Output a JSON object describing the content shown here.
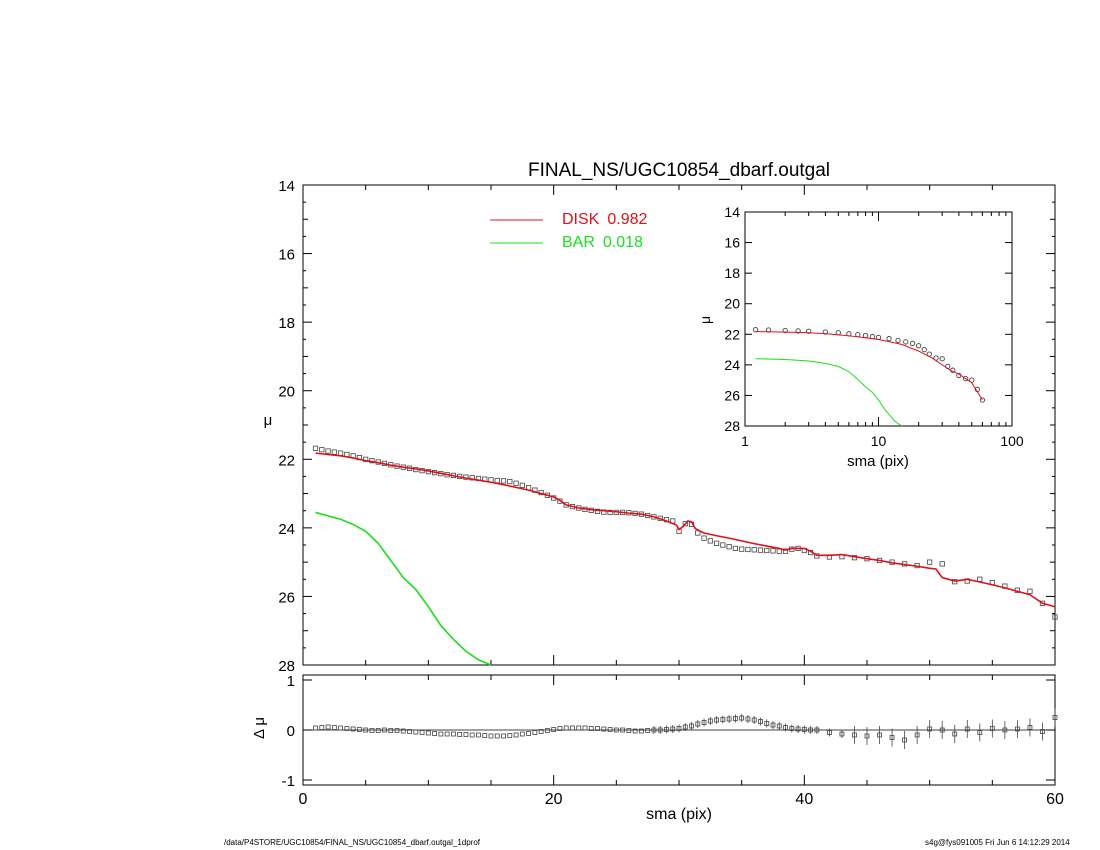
{
  "chart_data": [
    {
      "type": "line",
      "title": "FINAL_NS/UGC10854_dbarf.outgal",
      "ylabel": "μ",
      "xlim": [
        0,
        60
      ],
      "ylim": [
        28,
        14
      ],
      "y_reversed": true,
      "yticks": [
        14,
        16,
        18,
        20,
        22,
        24,
        26,
        28
      ],
      "legend": {
        "placement": "top-center",
        "entries": [
          {
            "name": "DISK",
            "value": "0.982",
            "color": "#e0101a"
          },
          {
            "name": "BAR",
            "value": "0.018",
            "color": "#18e018"
          }
        ]
      },
      "series": [
        {
          "name": "data",
          "marker": "open-square",
          "color": "#333333",
          "x": [
            1.0,
            1.5,
            2.0,
            2.5,
            3.0,
            3.5,
            4.0,
            4.5,
            5.0,
            5.5,
            6.0,
            6.5,
            7.0,
            7.5,
            8.0,
            8.5,
            9.0,
            9.5,
            10.0,
            10.5,
            11.0,
            11.5,
            12.0,
            12.5,
            13.0,
            13.5,
            14.0,
            14.5,
            15.0,
            15.5,
            16.0,
            16.5,
            17.0,
            17.5,
            18.0,
            18.5,
            19.0,
            19.5,
            20.0,
            20.5,
            21.0,
            21.5,
            22.0,
            22.5,
            23.0,
            23.5,
            24.0,
            24.5,
            25.0,
            25.5,
            26.0,
            26.5,
            27.0,
            27.5,
            28.0,
            28.5,
            29.0,
            29.5,
            30.0,
            30.5,
            31.0,
            31.5,
            32.0,
            32.5,
            33.0,
            33.5,
            34.0,
            34.5,
            35.0,
            35.5,
            36.0,
            36.5,
            37.0,
            37.5,
            38.0,
            38.5,
            39.0,
            39.5,
            40.0,
            40.5,
            41.0,
            42.0,
            43.0,
            44.0,
            45.0,
            46.0,
            47.0,
            48.0,
            49.0,
            50.0,
            51.0,
            52.0,
            53.0,
            54.0,
            55.0,
            56.0,
            57.0,
            58.0,
            59.0,
            60.0
          ],
          "y": [
            21.68,
            21.72,
            21.76,
            21.79,
            21.82,
            21.86,
            21.9,
            21.95,
            22.0,
            22.04,
            22.08,
            22.12,
            22.16,
            22.2,
            22.23,
            22.26,
            22.3,
            22.33,
            22.36,
            22.39,
            22.42,
            22.45,
            22.47,
            22.5,
            22.52,
            22.54,
            22.56,
            22.58,
            22.6,
            22.62,
            22.63,
            22.65,
            22.7,
            22.76,
            22.83,
            22.9,
            22.97,
            23.05,
            23.13,
            23.22,
            23.33,
            23.38,
            23.42,
            23.46,
            23.49,
            23.52,
            23.54,
            23.55,
            23.55,
            23.55,
            23.56,
            23.58,
            23.6,
            23.64,
            23.68,
            23.72,
            23.76,
            23.8,
            24.1,
            23.88,
            23.9,
            24.15,
            24.3,
            24.38,
            24.45,
            24.5,
            24.55,
            24.6,
            24.62,
            24.63,
            24.64,
            24.65,
            24.66,
            24.67,
            24.68,
            24.68,
            24.62,
            24.6,
            24.66,
            24.72,
            24.82,
            24.85,
            24.84,
            24.87,
            24.9,
            24.95,
            25.0,
            25.05,
            25.1,
            25.0,
            25.05,
            25.57,
            25.55,
            25.5,
            25.6,
            25.7,
            25.82,
            25.85,
            26.2,
            26.6
          ]
        },
        {
          "name": "DISK",
          "color": "#e0101a",
          "x": [
            1.0,
            2.0,
            3.0,
            4.0,
            5.0,
            6.0,
            7.0,
            8.0,
            9.0,
            10.0,
            11.0,
            12.0,
            13.0,
            14.0,
            15.0,
            16.0,
            17.0,
            18.0,
            19.0,
            20.0,
            20.5,
            21.0,
            22.0,
            23.0,
            24.0,
            25.0,
            26.0,
            27.0,
            28.0,
            29.0,
            29.8,
            30.0,
            30.3,
            30.7,
            31.0,
            31.3,
            31.6,
            32.0,
            33.0,
            34.0,
            35.0,
            36.0,
            37.0,
            38.0,
            38.5,
            39.0,
            39.5,
            40.0,
            40.5,
            41.0,
            42.0,
            43.0,
            44.0,
            45.0,
            46.0,
            47.0,
            48.0,
            49.0,
            50.0,
            50.5,
            51.0,
            52.0,
            53.0,
            54.0,
            55.0,
            56.0,
            57.0,
            58.0,
            59.0,
            60.0
          ],
          "y": [
            21.82,
            21.86,
            21.9,
            21.96,
            22.04,
            22.1,
            22.17,
            22.23,
            22.28,
            22.34,
            22.41,
            22.48,
            22.55,
            22.61,
            22.67,
            22.74,
            22.82,
            22.9,
            23.0,
            23.1,
            23.2,
            23.33,
            23.42,
            23.47,
            23.5,
            23.53,
            23.57,
            23.6,
            23.68,
            23.8,
            23.92,
            24.05,
            23.97,
            23.8,
            23.82,
            24.02,
            24.08,
            24.15,
            24.23,
            24.3,
            24.38,
            24.46,
            24.53,
            24.6,
            24.65,
            24.6,
            24.6,
            24.6,
            24.68,
            24.8,
            24.8,
            24.78,
            24.84,
            24.9,
            24.95,
            25.02,
            25.07,
            25.12,
            25.18,
            25.2,
            25.45,
            25.55,
            25.5,
            25.58,
            25.66,
            25.75,
            25.85,
            25.95,
            26.2,
            26.3
          ]
        },
        {
          "name": "BAR",
          "color": "#18e018",
          "x": [
            1.0,
            2.0,
            3.0,
            4.0,
            5.0,
            6.0,
            6.5,
            7.0,
            8.0,
            9.0,
            10.0,
            11.0,
            12.0,
            13.0,
            14.0,
            15.0,
            15.5
          ],
          "y": [
            23.55,
            23.65,
            23.75,
            23.9,
            24.1,
            24.45,
            24.7,
            24.95,
            25.45,
            25.8,
            26.3,
            26.85,
            27.25,
            27.6,
            27.85,
            28.0,
            28.05
          ]
        }
      ]
    },
    {
      "type": "line",
      "xlabel": "sma (pix)",
      "ylabel": "Δ μ",
      "xlim": [
        0,
        60
      ],
      "ylim": [
        -1.1,
        1.1
      ],
      "xticks": [
        0,
        20,
        40,
        60
      ],
      "yticks": [
        -1,
        0,
        1
      ],
      "reference_line": 0,
      "series": [
        {
          "name": "residual",
          "marker": "open-square-with-errorbar",
          "color": "#333333",
          "x": [
            1.0,
            1.5,
            2.0,
            2.5,
            3.0,
            3.5,
            4.0,
            4.5,
            5.0,
            5.5,
            6.0,
            6.5,
            7.0,
            7.5,
            8.0,
            8.5,
            9.0,
            9.5,
            10.0,
            10.5,
            11.0,
            11.5,
            12.0,
            12.5,
            13.0,
            13.5,
            14.0,
            14.5,
            15.0,
            15.5,
            16.0,
            16.5,
            17.0,
            17.5,
            18.0,
            18.5,
            19.0,
            19.5,
            20.0,
            20.5,
            21.0,
            21.5,
            22.0,
            22.5,
            23.0,
            23.5,
            24.0,
            24.5,
            25.0,
            25.5,
            26.0,
            26.5,
            27.0,
            27.5,
            28.0,
            28.5,
            29.0,
            29.5,
            30.0,
            30.5,
            31.0,
            31.5,
            32.0,
            32.5,
            33.0,
            33.5,
            34.0,
            34.5,
            35.0,
            35.5,
            36.0,
            36.5,
            37.0,
            37.5,
            38.0,
            38.5,
            39.0,
            39.5,
            40.0,
            40.5,
            41.0,
            42.0,
            43.0,
            44.0,
            45.0,
            46.0,
            47.0,
            48.0,
            49.0,
            50.0,
            51.0,
            52.0,
            53.0,
            54.0,
            55.0,
            56.0,
            57.0,
            58.0,
            59.0,
            60.0
          ],
          "y": [
            0.04,
            0.05,
            0.06,
            0.05,
            0.04,
            0.03,
            0.02,
            0.01,
            0.0,
            -0.01,
            -0.01,
            0.0,
            -0.01,
            -0.01,
            -0.02,
            -0.03,
            -0.04,
            -0.05,
            -0.06,
            -0.07,
            -0.08,
            -0.08,
            -0.08,
            -0.09,
            -0.09,
            -0.1,
            -0.1,
            -0.11,
            -0.12,
            -0.12,
            -0.12,
            -0.11,
            -0.1,
            -0.08,
            -0.07,
            -0.05,
            -0.03,
            -0.01,
            0.01,
            0.03,
            0.04,
            0.04,
            0.04,
            0.04,
            0.03,
            0.03,
            0.02,
            0.01,
            0.0,
            0.0,
            -0.01,
            -0.02,
            -0.02,
            -0.01,
            0.0,
            0.0,
            0.01,
            0.02,
            0.03,
            0.06,
            0.08,
            0.12,
            0.15,
            0.18,
            0.2,
            0.21,
            0.22,
            0.23,
            0.24,
            0.22,
            0.2,
            0.17,
            0.13,
            0.1,
            0.08,
            0.05,
            0.03,
            0.02,
            0.01,
            0.0,
            0.0,
            -0.05,
            -0.08,
            -0.1,
            -0.12,
            -0.1,
            -0.15,
            -0.2,
            -0.1,
            0.02,
            0.0,
            -0.08,
            0.02,
            -0.05,
            0.03,
            0.0,
            0.02,
            0.05,
            -0.03,
            0.25
          ]
        }
      ]
    },
    {
      "type": "line",
      "xlabel": "sma (pix)",
      "ylabel": "μ",
      "x_scale": "log",
      "xlim": [
        1,
        100
      ],
      "ylim": [
        28,
        14
      ],
      "y_reversed": true,
      "xticks": [
        1,
        10,
        100
      ],
      "yticks": [
        14,
        16,
        18,
        20,
        22,
        24,
        26,
        28
      ],
      "series": [
        {
          "name": "data",
          "marker": "open-circle",
          "color": "#333333",
          "x": [
            1.2,
            1.5,
            2.0,
            2.5,
            3.0,
            4.0,
            5.0,
            6.0,
            7.0,
            8.0,
            9.0,
            10.0,
            12.0,
            14.0,
            16.0,
            18.0,
            20.0,
            22.0,
            24.0,
            27.0,
            30.0,
            33.0,
            36.0,
            40.0,
            45.0,
            50.0,
            55.0,
            60.0
          ],
          "y": [
            21.7,
            21.72,
            21.75,
            21.78,
            21.8,
            21.85,
            21.9,
            21.97,
            22.02,
            22.08,
            22.15,
            22.2,
            22.28,
            22.4,
            22.5,
            22.6,
            22.75,
            23.0,
            23.3,
            23.55,
            23.6,
            24.1,
            24.35,
            24.7,
            24.9,
            25.0,
            25.6,
            26.3
          ]
        },
        {
          "name": "DISK",
          "color": "#e0101a",
          "x": [
            1.2,
            2.0,
            3.0,
            4.0,
            5.0,
            6.0,
            8.0,
            10.0,
            12.0,
            15.0,
            20.0,
            25.0,
            30.0,
            35.0,
            40.0,
            50.0,
            60.0
          ],
          "y": [
            21.82,
            21.86,
            21.9,
            21.96,
            22.04,
            22.1,
            22.23,
            22.34,
            22.48,
            22.67,
            23.1,
            23.53,
            24.0,
            24.38,
            24.6,
            25.18,
            26.3
          ]
        },
        {
          "name": "BAR",
          "color": "#18e018",
          "x": [
            1.2,
            2.0,
            3.0,
            4.0,
            5.0,
            6.0,
            7.0,
            8.0,
            9.0,
            10.0,
            11.0,
            12.0,
            13.0,
            14.0,
            15.0
          ],
          "y": [
            23.6,
            23.65,
            23.75,
            23.9,
            24.1,
            24.45,
            24.95,
            25.45,
            25.8,
            26.3,
            26.85,
            27.25,
            27.6,
            27.85,
            28.0
          ]
        }
      ]
    }
  ],
  "footer": {
    "path": "/data/P4STORE/UGC10854/FINAL_NS/UGC10854_dbarf.outgal_1dprof",
    "stamp": "s4g@fys091005  Fri Jun  6 14:12:29 2014"
  }
}
